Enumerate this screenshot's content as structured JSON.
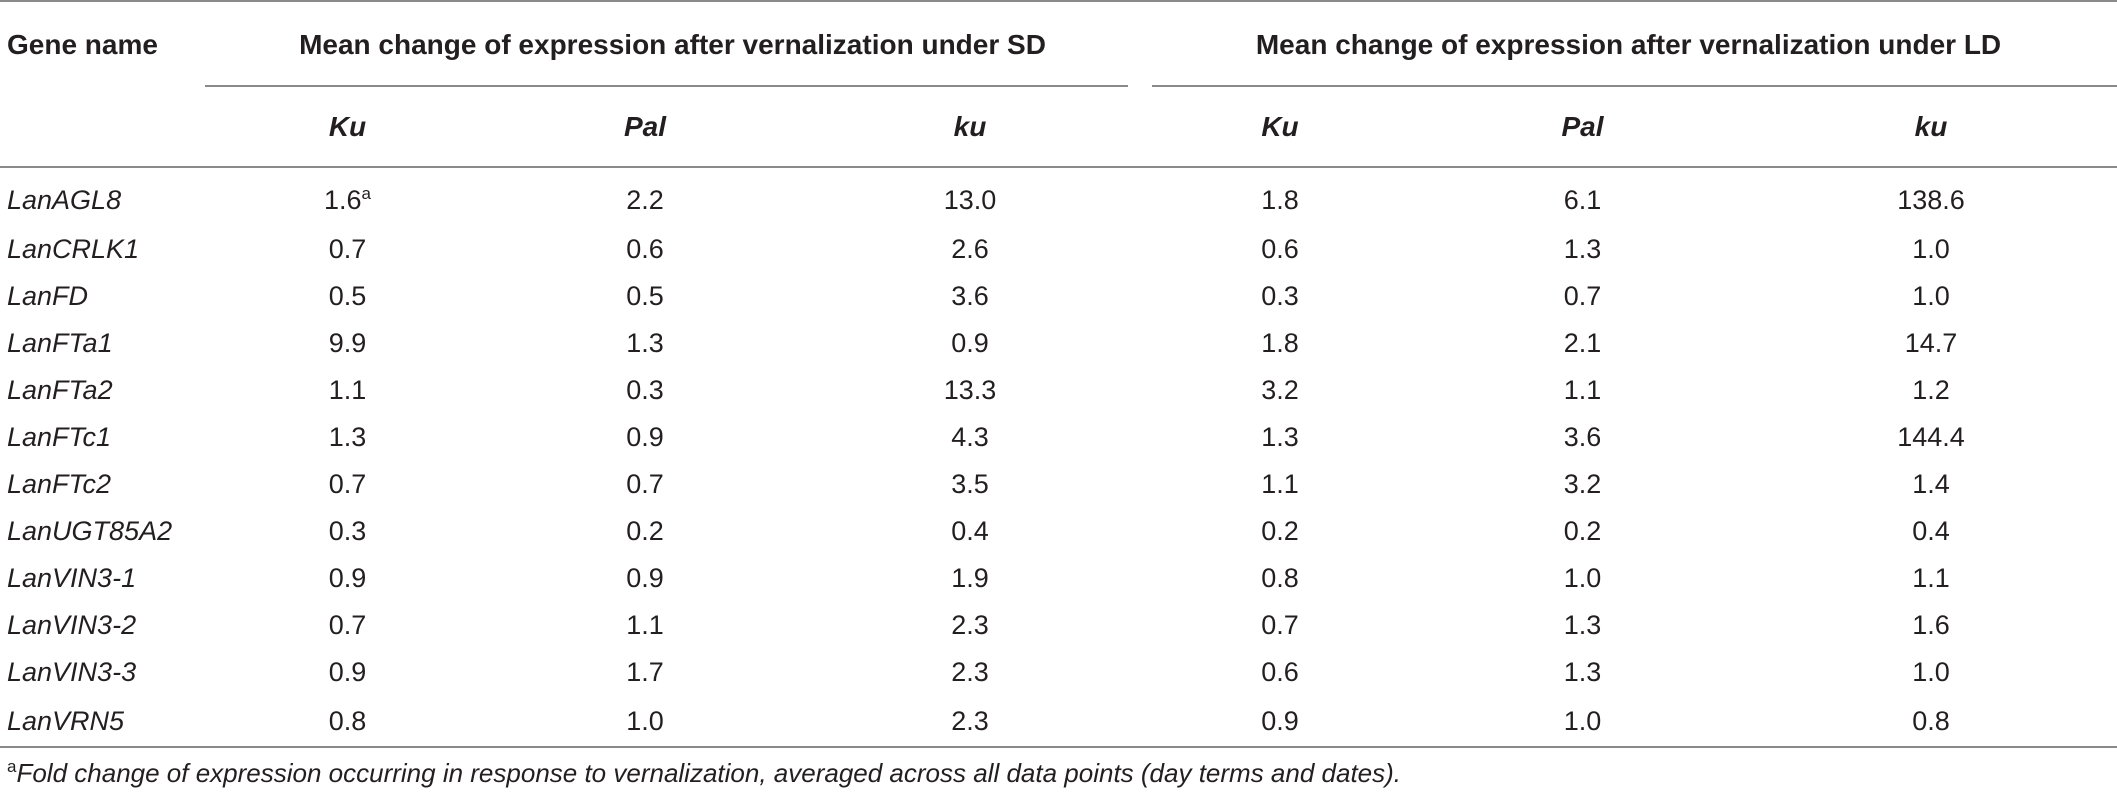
{
  "table": {
    "gene_header": "Gene name",
    "groups": [
      "Mean change of expression after vernalization under SD",
      "Mean change of expression after vernalization under LD"
    ],
    "subheaders": [
      "Ku",
      "Pal",
      "ku",
      "Ku",
      "Pal",
      "ku"
    ],
    "rows": [
      {
        "gene": "LanAGL8",
        "values": [
          "1.6",
          "2.2",
          "13.0",
          "1.8",
          "6.1",
          "138.6"
        ],
        "first_sup": "a"
      },
      {
        "gene": "LanCRLK1",
        "values": [
          "0.7",
          "0.6",
          "2.6",
          "0.6",
          "1.3",
          "1.0"
        ]
      },
      {
        "gene": "LanFD",
        "values": [
          "0.5",
          "0.5",
          "3.6",
          "0.3",
          "0.7",
          "1.0"
        ]
      },
      {
        "gene": "LanFTa1",
        "values": [
          "9.9",
          "1.3",
          "0.9",
          "1.8",
          "2.1",
          "14.7"
        ]
      },
      {
        "gene": "LanFTa2",
        "values": [
          "1.1",
          "0.3",
          "13.3",
          "3.2",
          "1.1",
          "1.2"
        ]
      },
      {
        "gene": "LanFTc1",
        "values": [
          "1.3",
          "0.9",
          "4.3",
          "1.3",
          "3.6",
          "144.4"
        ]
      },
      {
        "gene": "LanFTc2",
        "values": [
          "0.7",
          "0.7",
          "3.5",
          "1.1",
          "3.2",
          "1.4"
        ]
      },
      {
        "gene": "LanUGT85A2",
        "values": [
          "0.3",
          "0.2",
          "0.4",
          "0.2",
          "0.2",
          "0.4"
        ]
      },
      {
        "gene": "LanVIN3-1",
        "values": [
          "0.9",
          "0.9",
          "1.9",
          "0.8",
          "1.0",
          "1.1"
        ]
      },
      {
        "gene": "LanVIN3-2",
        "values": [
          "0.7",
          "1.1",
          "2.3",
          "0.7",
          "1.3",
          "1.6"
        ]
      },
      {
        "gene": "LanVIN3-3",
        "values": [
          "0.9",
          "1.7",
          "2.3",
          "0.6",
          "1.3",
          "1.0"
        ]
      },
      {
        "gene": "LanVRN5",
        "values": [
          "0.8",
          "1.0",
          "2.3",
          "0.9",
          "1.0",
          "0.8"
        ]
      }
    ]
  },
  "footnote": {
    "marker": "a",
    "text": "Fold change of expression occurring in response to vernalization, averaged across all data points (day terms and dates)."
  }
}
